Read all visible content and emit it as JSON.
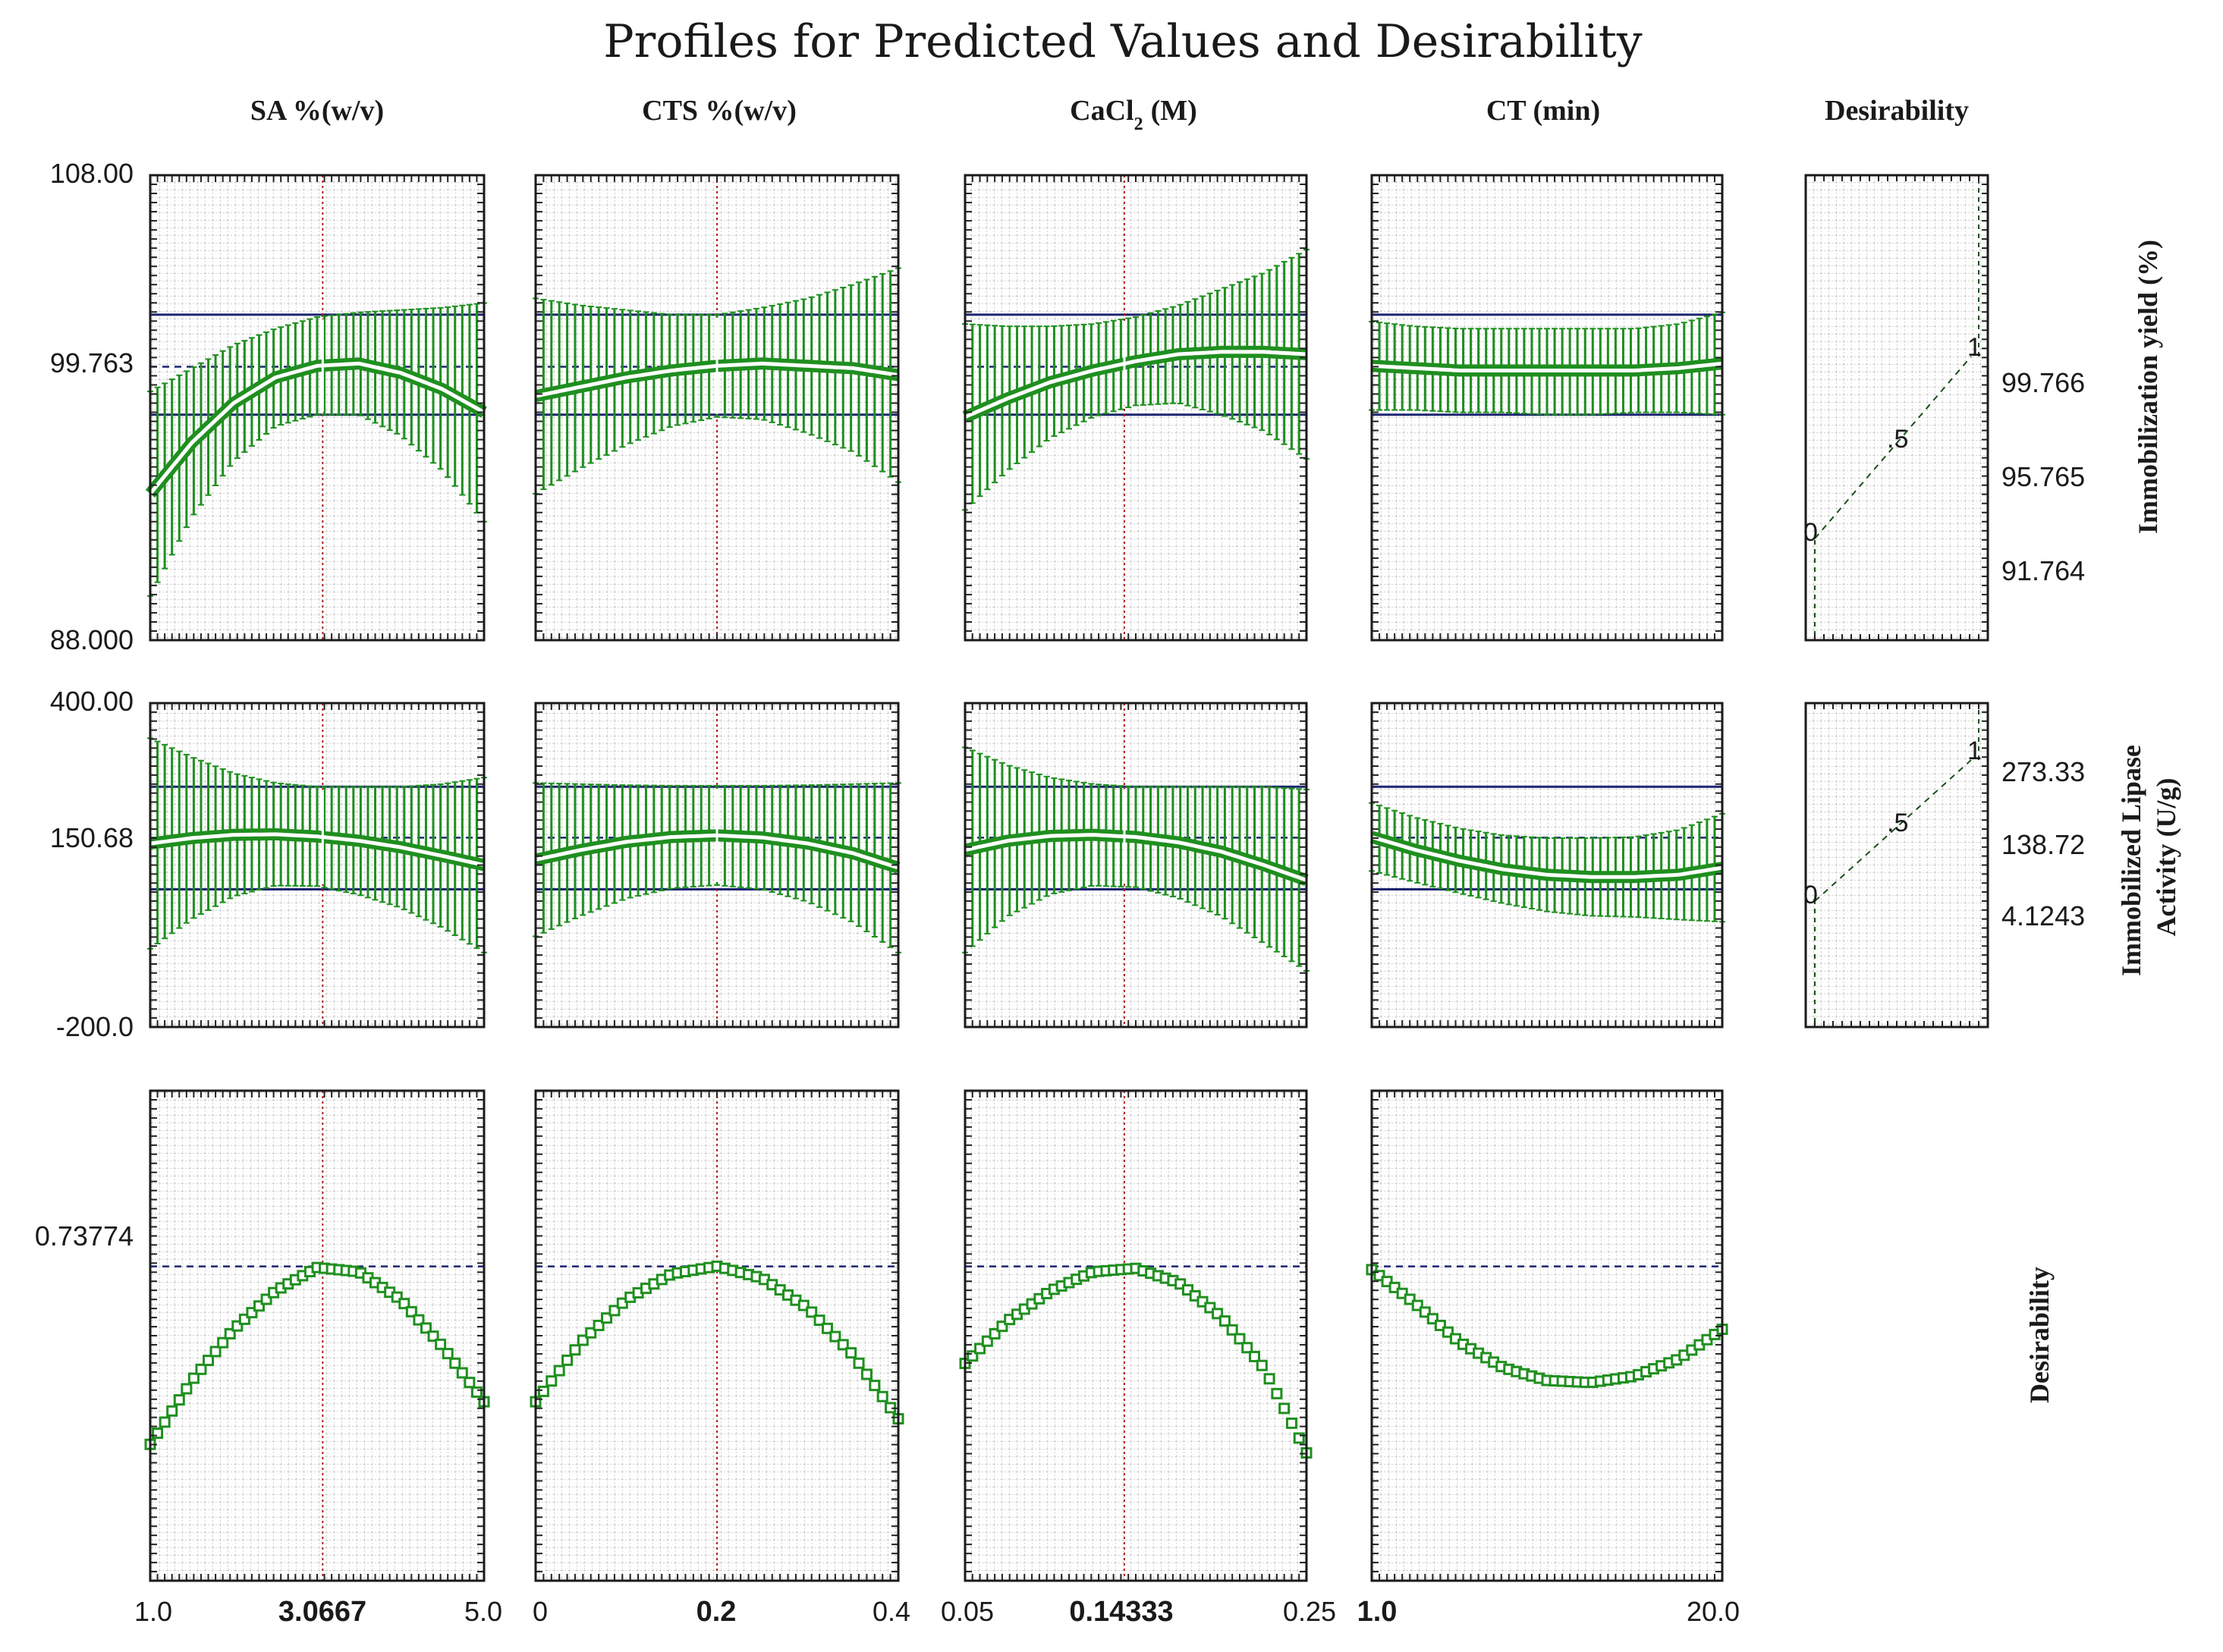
{
  "chart_data": {
    "type": "line",
    "title": "Profiles for Predicted Values and Desirability",
    "factors": [
      {
        "name": "SA %(w/v)",
        "xmin": 1.0,
        "xmax": 5.0,
        "current": 3.0667,
        "tick_labels": {
          "min": "1.0",
          "current": "3.0667",
          "max": "5.0"
        }
      },
      {
        "name": "CTS %(w/v)",
        "xmin": 0,
        "xmax": 0.4,
        "current": 0.2,
        "tick_labels": {
          "min": "0",
          "current": "0.2",
          "max": "0.4"
        }
      },
      {
        "name": "CaCl",
        "name_subscript": "2",
        "name_suffix": "(M)",
        "xmin": 0.05,
        "xmax": 0.25,
        "current": 0.14333,
        "tick_labels": {
          "min": "0.05",
          "current": "0.14333",
          "max": "0.25"
        }
      },
      {
        "name": "CT (min)",
        "xmin": 1.0,
        "xmax": 20.0,
        "current": 1.0,
        "tick_labels": {
          "min": "1.0",
          "current": "1.0",
          "max": "20.0"
        }
      }
    ],
    "desirability_header": "Desirability",
    "responses": [
      {
        "name": "Immobilization yield (%)",
        "ylim": [
          88.0,
          108.0
        ],
        "y_tick_labels": {
          "top": "108.00",
          "current": "99.763",
          "bottom": "88.000"
        },
        "current_value": 99.763,
        "ci_lines": [
          102.0,
          97.7
        ],
        "profiles": [
          {
            "x": [
              1.0,
              1.5,
              2.0,
              2.5,
              3.0,
              3.5,
              4.0,
              4.5,
              5.0
            ],
            "pred": [
              94.3,
              96.5,
              98.2,
              99.3,
              99.8,
              99.9,
              99.5,
              98.8,
              97.8
            ],
            "upper": [
              98.7,
              99.7,
              100.7,
              101.4,
              101.9,
              102.1,
              102.2,
              102.3,
              102.5
            ],
            "lower": [
              89.9,
              93.3,
              95.7,
              97.2,
              97.7,
              97.7,
              96.8,
              95.3,
              93.1
            ]
          },
          {
            "x": [
              0,
              0.05,
              0.1,
              0.15,
              0.2,
              0.25,
              0.3,
              0.35,
              0.4
            ],
            "pred": [
              98.5,
              98.9,
              99.3,
              99.6,
              99.8,
              99.9,
              99.8,
              99.7,
              99.4
            ],
            "upper": [
              102.7,
              102.4,
              102.2,
              102.0,
              102.0,
              102.3,
              102.7,
              103.3,
              104.0
            ],
            "lower": [
              94.3,
              95.4,
              96.4,
              97.2,
              97.6,
              97.5,
              96.9,
              96.1,
              94.8
            ]
          },
          {
            "x": [
              0.05,
              0.075,
              0.1,
              0.125,
              0.15,
              0.175,
              0.2,
              0.225,
              0.25
            ],
            "pred": [
              97.6,
              98.4,
              99.1,
              99.6,
              100.0,
              100.3,
              100.4,
              100.4,
              100.3
            ],
            "upper": [
              101.6,
              101.5,
              101.5,
              101.6,
              101.9,
              102.4,
              103.1,
              103.8,
              104.8
            ],
            "lower": [
              93.6,
              95.3,
              96.7,
              97.6,
              98.1,
              98.2,
              97.7,
              97.0,
              95.8
            ]
          },
          {
            "x": [
              1.0,
              3.375,
              5.75,
              8.125,
              10.5,
              12.875,
              15.25,
              17.625,
              20.0
            ],
            "pred": [
              99.8,
              99.7,
              99.6,
              99.6,
              99.6,
              99.6,
              99.6,
              99.7,
              99.9
            ],
            "upper": [
              101.7,
              101.5,
              101.4,
              101.4,
              101.4,
              101.4,
              101.4,
              101.6,
              102.1
            ],
            "lower": [
              97.9,
              97.9,
              97.8,
              97.8,
              97.7,
              97.7,
              97.8,
              97.8,
              97.7
            ]
          }
        ],
        "desirability_labels": [
          "99.766",
          "95.765",
          "91.764"
        ],
        "desirability_marks": [
          "0",
          ".5",
          "1"
        ]
      },
      {
        "name": "Immobilized Lipase Activity (U/g)",
        "name_lines": [
          "Immobilized Lipase",
          "Activity (U/g)"
        ],
        "ylim": [
          -200.0,
          400.0
        ],
        "y_tick_labels": {
          "top": "400.00",
          "current": "150.68",
          "bottom": "-200.0"
        },
        "current_value": 150.68,
        "ci_lines": [
          245.0,
          55.0
        ],
        "profiles": [
          {
            "x": [
              1.0,
              1.5,
              2.0,
              2.5,
              3.0,
              3.5,
              4.0,
              4.5,
              5.0
            ],
            "pred": [
              140,
              150,
              156,
              157,
              153,
              145,
              133,
              117,
              100
            ],
            "upper": [
              335,
              300,
              270,
              252,
              245,
              245,
              245,
              250,
              262
            ],
            "lower": [
              -55,
              0,
              42,
              62,
              61,
              45,
              21,
              -16,
              -62
            ]
          },
          {
            "x": [
              0,
              0.05,
              0.1,
              0.15,
              0.2,
              0.25,
              0.3,
              0.35,
              0.4
            ],
            "pred": [
              110,
              128,
              143,
              152,
              155,
              151,
              140,
              122,
              95
            ],
            "upper": [
              252,
              250,
              248,
              247,
              247,
              247,
              248,
              250,
              252
            ],
            "lower": [
              -32,
              6,
              38,
              57,
              63,
              55,
              32,
              -6,
              -62
            ]
          },
          {
            "x": [
              0.05,
              0.075,
              0.1,
              0.125,
              0.15,
              0.175,
              0.2,
              0.225,
              0.25
            ],
            "pred": [
              128,
              145,
              154,
              156,
              152,
              142,
              125,
              100,
              72
            ],
            "upper": [
              318,
              285,
              262,
              250,
              245,
              245,
              245,
              245,
              240
            ],
            "lower": [
              -62,
              5,
              46,
              62,
              59,
              39,
              5,
              -45,
              -96
            ]
          },
          {
            "x": [
              1.0,
              3.375,
              5.75,
              8.125,
              10.5,
              12.875,
              15.25,
              17.625,
              20.0
            ],
            "pred": [
              152,
              128,
              108,
              92,
              82,
              78,
              78,
              82,
              95
            ],
            "upper": [
              215,
              188,
              168,
              155,
              150,
              150,
              152,
              165,
              195
            ],
            "lower": [
              89,
              68,
              48,
              29,
              14,
              6,
              4,
              -1,
              -5
            ]
          }
        ],
        "desirability_labels": [
          "273.33",
          "138.72",
          "4.1243"
        ],
        "desirability_marks": [
          "0",
          ".5",
          "1"
        ]
      },
      {
        "name": "Desirability",
        "y_tick_labels": {
          "current": "0.73774"
        },
        "ylim": [
          0.0,
          1.15
        ],
        "current_value": 0.73774,
        "profiles": [
          {
            "x": [
              1.0,
              1.5,
              2.0,
              2.5,
              3.0,
              3.5,
              4.0,
              4.5,
              5.0
            ],
            "pred": [
              0.32,
              0.47,
              0.59,
              0.68,
              0.735,
              0.725,
              0.66,
              0.55,
              0.42
            ]
          },
          {
            "x": [
              0,
              0.05,
              0.1,
              0.15,
              0.2,
              0.25,
              0.3,
              0.35,
              0.4
            ],
            "pred": [
              0.42,
              0.56,
              0.66,
              0.72,
              0.738,
              0.71,
              0.64,
              0.53,
              0.38
            ]
          },
          {
            "x": [
              0.05,
              0.075,
              0.1,
              0.125,
              0.15,
              0.175,
              0.2,
              0.225,
              0.25
            ],
            "pred": [
              0.51,
              0.61,
              0.68,
              0.725,
              0.733,
              0.7,
              0.62,
              0.5,
              0.3
            ]
          },
          {
            "x": [
              1.0,
              3.375,
              5.75,
              8.125,
              10.5,
              12.875,
              15.25,
              17.625,
              20.0
            ],
            "pred": [
              0.73,
              0.65,
              0.56,
              0.5,
              0.47,
              0.465,
              0.48,
              0.52,
              0.59
            ]
          }
        ]
      }
    ]
  }
}
